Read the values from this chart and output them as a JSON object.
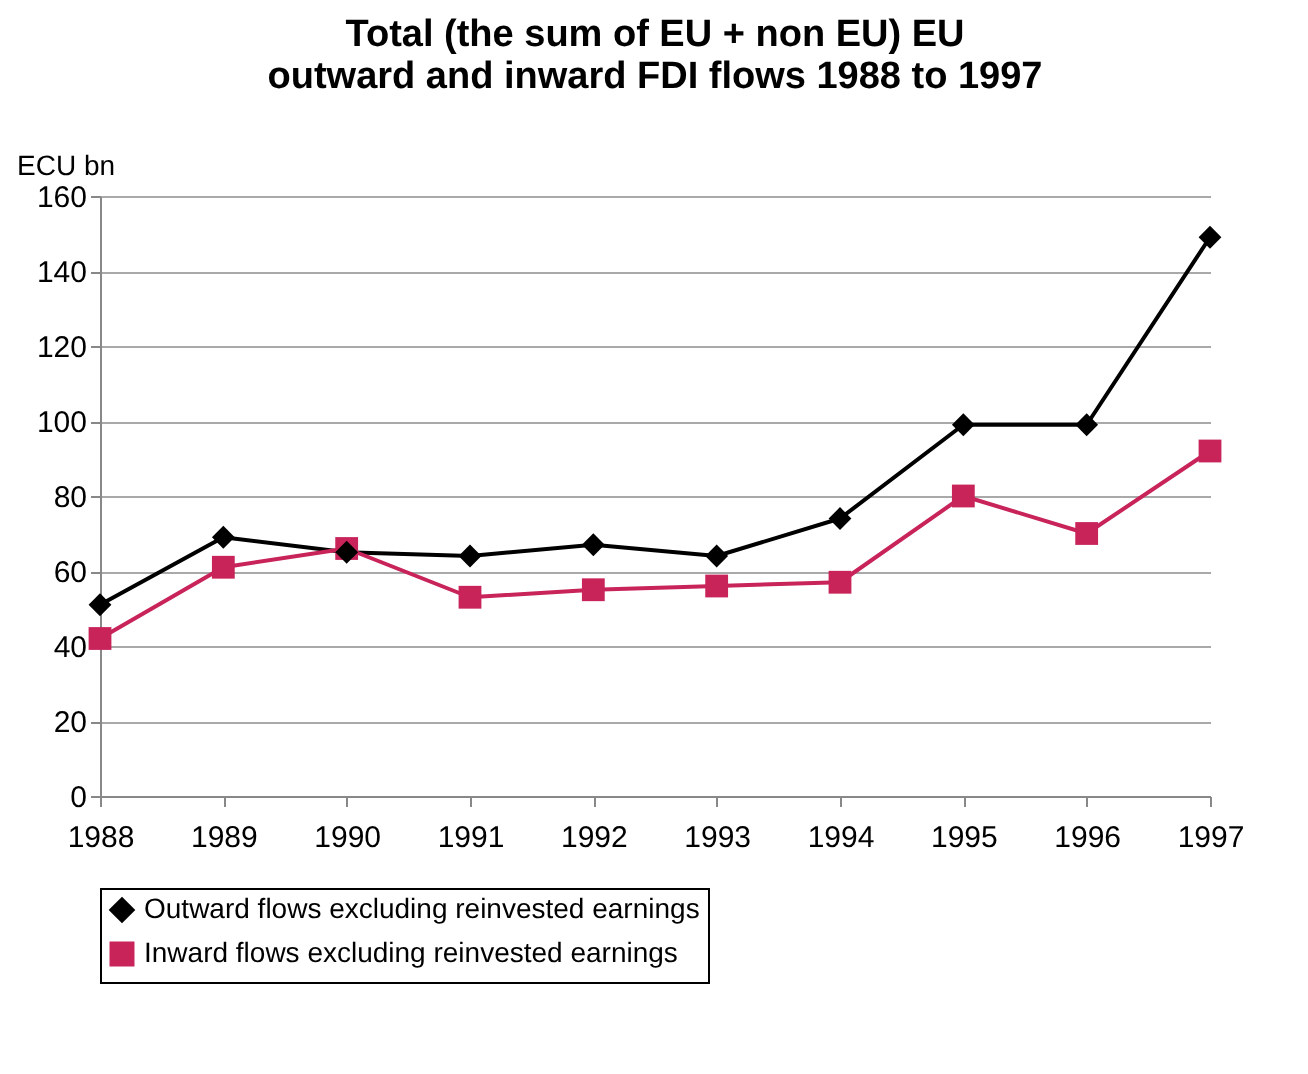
{
  "chart_data": {
    "type": "line",
    "title": "Total (the sum of EU + non EU) EU outward and inward FDI flows 1988 to 1997",
    "ylabel": "ECU bn",
    "categories": [
      "1988",
      "1989",
      "1990",
      "1991",
      "1992",
      "1993",
      "1994",
      "1995",
      "1996",
      "1997"
    ],
    "series": [
      {
        "name": "Outward flows excluding reinvested earnings",
        "color": "#000000",
        "marker": "diamond",
        "values": [
          51,
          69,
          65,
          64,
          67,
          64,
          74,
          99,
          99,
          149
        ]
      },
      {
        "name": "Inward flows excluding reinvested earnings",
        "color": "#c8245a",
        "marker": "square",
        "values": [
          42,
          61,
          66,
          53,
          55,
          56,
          57,
          80,
          70,
          92
        ]
      }
    ],
    "ylim": [
      0,
      160
    ],
    "yticks": [
      0,
      20,
      40,
      60,
      80,
      100,
      120,
      140,
      160
    ],
    "grid": "y",
    "legend": "bottom"
  }
}
